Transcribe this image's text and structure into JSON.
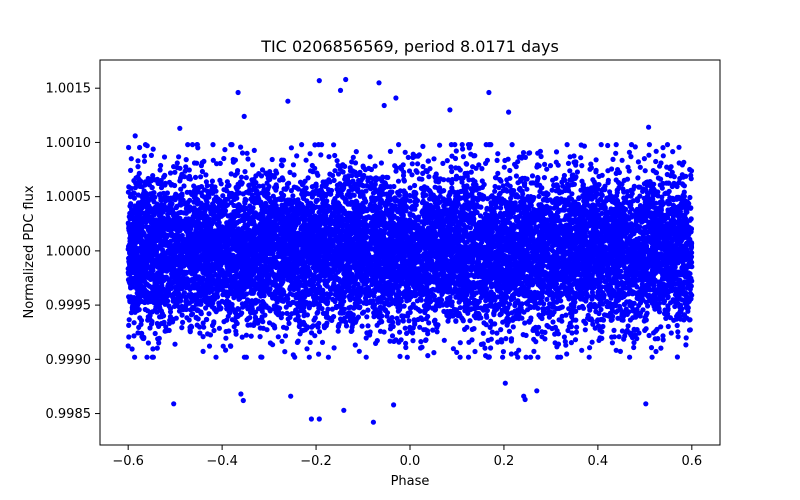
{
  "chart_data": {
    "type": "scatter",
    "title": "TIC 0206856569, period 8.0171 days",
    "xlabel": "Phase",
    "ylabel": "Normalized PDC flux",
    "xlim": [
      -0.66,
      0.66
    ],
    "ylim": [
      0.99821,
      1.00176
    ],
    "xticks": [
      -0.6,
      -0.4,
      -0.2,
      0.0,
      0.2,
      0.4,
      0.6
    ],
    "xtick_labels": [
      "−0.6",
      "−0.4",
      "−0.2",
      "0.0",
      "0.2",
      "0.4",
      "0.6"
    ],
    "yticks": [
      0.9985,
      0.999,
      0.9995,
      1.0,
      1.0005,
      1.001,
      1.0015
    ],
    "ytick_labels": [
      "0.9985",
      "0.9990",
      "0.9995",
      "1.0000",
      "1.0005",
      "1.0010",
      "1.0015"
    ],
    "grid": false,
    "marker_color": "#0000ff",
    "series": [
      {
        "name": "flux",
        "x_range": [
          -0.6,
          0.6
        ],
        "core_mean": 1.0,
        "core_std": 0.00035,
        "points": 12000,
        "outliers": [
          {
            "x": -0.585,
            "y": 1.00106
          },
          {
            "x": -0.503,
            "y": 0.99859
          },
          {
            "x": -0.49,
            "y": 1.00113
          },
          {
            "x": -0.366,
            "y": 1.00146
          },
          {
            "x": -0.36,
            "y": 0.99868
          },
          {
            "x": -0.355,
            "y": 0.99862
          },
          {
            "x": -0.353,
            "y": 1.00124
          },
          {
            "x": -0.26,
            "y": 1.00138
          },
          {
            "x": -0.254,
            "y": 0.99866
          },
          {
            "x": -0.21,
            "y": 0.99845
          },
          {
            "x": -0.193,
            "y": 1.00157
          },
          {
            "x": -0.193,
            "y": 0.99845
          },
          {
            "x": -0.148,
            "y": 1.00148
          },
          {
            "x": -0.137,
            "y": 1.00158
          },
          {
            "x": -0.141,
            "y": 0.99853
          },
          {
            "x": -0.078,
            "y": 0.99842
          },
          {
            "x": -0.066,
            "y": 1.00155
          },
          {
            "x": -0.055,
            "y": 1.00134
          },
          {
            "x": -0.03,
            "y": 1.00141
          },
          {
            "x": -0.035,
            "y": 0.99858
          },
          {
            "x": 0.085,
            "y": 1.0013
          },
          {
            "x": 0.168,
            "y": 1.00146
          },
          {
            "x": 0.203,
            "y": 0.99878
          },
          {
            "x": 0.21,
            "y": 1.00128
          },
          {
            "x": 0.242,
            "y": 0.99866
          },
          {
            "x": 0.245,
            "y": 0.99863
          },
          {
            "x": 0.27,
            "y": 0.99871
          },
          {
            "x": 0.502,
            "y": 0.99859
          },
          {
            "x": 0.508,
            "y": 1.00114
          }
        ]
      }
    ]
  }
}
